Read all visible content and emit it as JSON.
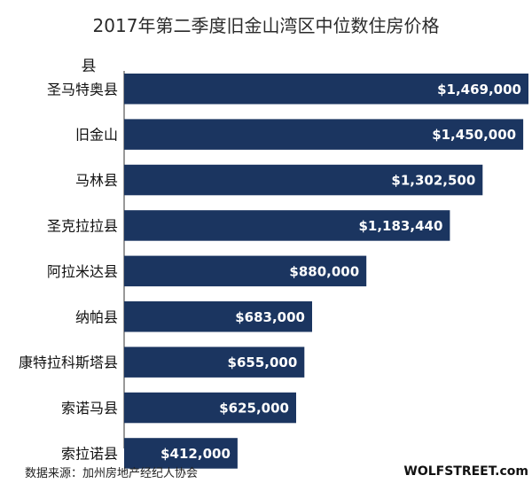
{
  "chart_data": {
    "type": "bar",
    "orientation": "horizontal",
    "title": "2017年第二季度旧金山湾区中位数住房价格",
    "ylabel": "县",
    "categories": [
      "圣马特奥县",
      "旧金山",
      "马林县",
      "圣克拉拉县",
      "阿拉米达县",
      "纳帕县",
      "康特拉科斯塔县",
      "索诺马县",
      "索拉诺县"
    ],
    "values": [
      1469000,
      1450000,
      1302500,
      1183440,
      880000,
      683000,
      655000,
      625000,
      412000
    ],
    "value_labels": [
      "$1,469,000",
      "$1,450,000",
      "$1,302,500",
      "$1,183,440",
      "$880,000",
      "$683,000",
      "$655,000",
      "$625,000",
      "$412,000"
    ],
    "xlim": [
      0,
      1469000
    ],
    "bar_color": "#1b3560",
    "grid": false,
    "legend": "none"
  },
  "footer": {
    "source": "数据来源：加州房地产经纪人协会",
    "brand": "WOLFSTREET.com"
  }
}
